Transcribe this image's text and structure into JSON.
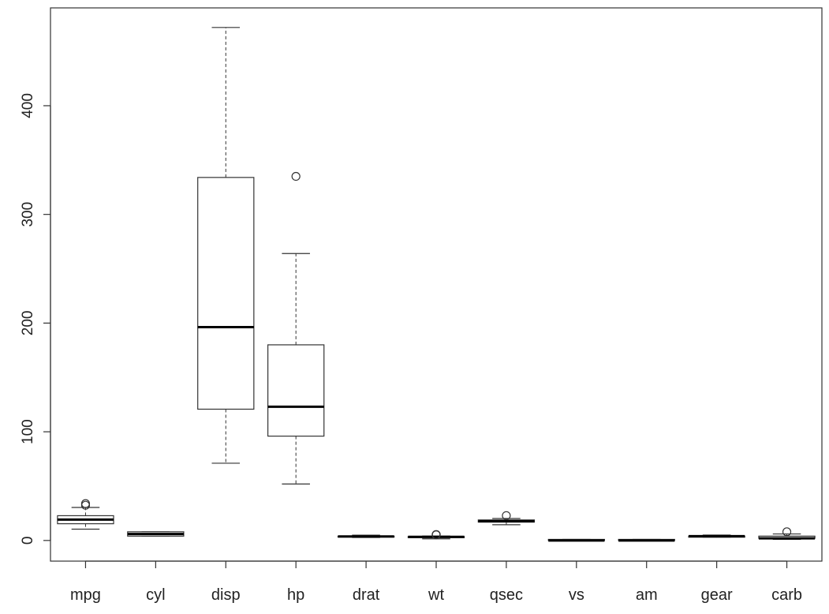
{
  "chart_data": {
    "type": "boxplot",
    "title": "",
    "xlabel": "",
    "ylabel": "",
    "ylim": [
      -19,
      490
    ],
    "yticks": [
      0,
      100,
      200,
      300,
      400
    ],
    "ytick_labels": [
      "0",
      "100",
      "200",
      "300",
      "400"
    ],
    "grid": false,
    "legend": "none",
    "categories": [
      "mpg",
      "cyl",
      "disp",
      "hp",
      "drat",
      "wt",
      "qsec",
      "vs",
      "am",
      "gear",
      "carb"
    ],
    "boxes": [
      {
        "name": "mpg",
        "min": 10.4,
        "q1": 15.4,
        "median": 19.2,
        "q3": 22.8,
        "max": 30.4,
        "outliers": [
          32.4,
          33.9
        ]
      },
      {
        "name": "cyl",
        "min": 4,
        "q1": 4,
        "median": 6,
        "q3": 8,
        "max": 8,
        "outliers": []
      },
      {
        "name": "disp",
        "min": 71.1,
        "q1": 120.8,
        "median": 196.3,
        "q3": 334,
        "max": 472,
        "outliers": []
      },
      {
        "name": "hp",
        "min": 52,
        "q1": 96,
        "median": 123,
        "q3": 180,
        "max": 264,
        "outliers": [
          335
        ]
      },
      {
        "name": "drat",
        "min": 2.76,
        "q1": 3.08,
        "median": 3.695,
        "q3": 3.92,
        "max": 4.93,
        "outliers": []
      },
      {
        "name": "wt",
        "min": 1.513,
        "q1": 2.581,
        "median": 3.325,
        "q3": 3.61,
        "max": 4.07,
        "outliers": [
          5.25,
          5.345,
          5.424
        ]
      },
      {
        "name": "qsec",
        "min": 14.5,
        "q1": 16.89,
        "median": 17.71,
        "q3": 18.9,
        "max": 20.22,
        "outliers": [
          22.9
        ]
      },
      {
        "name": "vs",
        "min": 0,
        "q1": 0,
        "median": 0,
        "q3": 1,
        "max": 1,
        "outliers": []
      },
      {
        "name": "am",
        "min": 0,
        "q1": 0,
        "median": 0,
        "q3": 1,
        "max": 1,
        "outliers": []
      },
      {
        "name": "gear",
        "min": 3,
        "q1": 3,
        "median": 4,
        "q3": 4,
        "max": 5,
        "outliers": []
      },
      {
        "name": "carb",
        "min": 1,
        "q1": 2,
        "median": 2,
        "q3": 4,
        "max": 6,
        "outliers": [
          8
        ]
      }
    ]
  }
}
